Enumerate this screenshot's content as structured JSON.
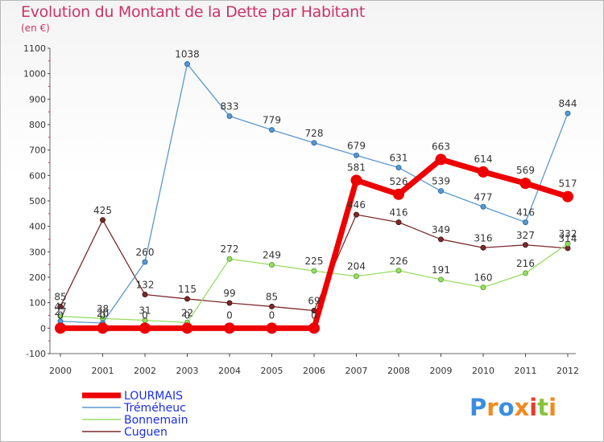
{
  "chart_data": {
    "type": "line",
    "title": "Evolution du Montant de la Dette par Habitant",
    "subtitle": "(en €)",
    "x": [
      "2000",
      "2001",
      "2002",
      "2003",
      "2004",
      "2005",
      "2006",
      "2007",
      "2008",
      "2009",
      "2010",
      "2011",
      "2012"
    ],
    "ylim": [
      -100,
      1100
    ],
    "yticks": [
      -100,
      0,
      100,
      200,
      300,
      400,
      500,
      600,
      700,
      800,
      900,
      1000,
      1100
    ],
    "grid": false,
    "legend_position": "bottom-left",
    "series": [
      {
        "name": "LOURMAIS",
        "color": "#ee0000",
        "values": [
          0,
          0,
          0,
          0,
          0,
          0,
          0,
          581,
          526,
          663,
          614,
          569,
          517
        ]
      },
      {
        "name": "Tréméheuc",
        "color": "#5b97cf",
        "values": [
          27,
          20,
          260,
          1038,
          833,
          779,
          728,
          679,
          631,
          539,
          477,
          416,
          844
        ]
      },
      {
        "name": "Bonnemain",
        "color": "#99dd66",
        "values": [
          47,
          38,
          31,
          22,
          272,
          249,
          225,
          204,
          226,
          191,
          160,
          216,
          332
        ]
      },
      {
        "name": "Cuguen",
        "color": "#7a2b2b",
        "values": [
          85,
          425,
          132,
          115,
          99,
          85,
          69,
          446,
          416,
          349,
          316,
          327,
          314
        ]
      }
    ]
  },
  "logo": {
    "text": "Proxiti"
  }
}
